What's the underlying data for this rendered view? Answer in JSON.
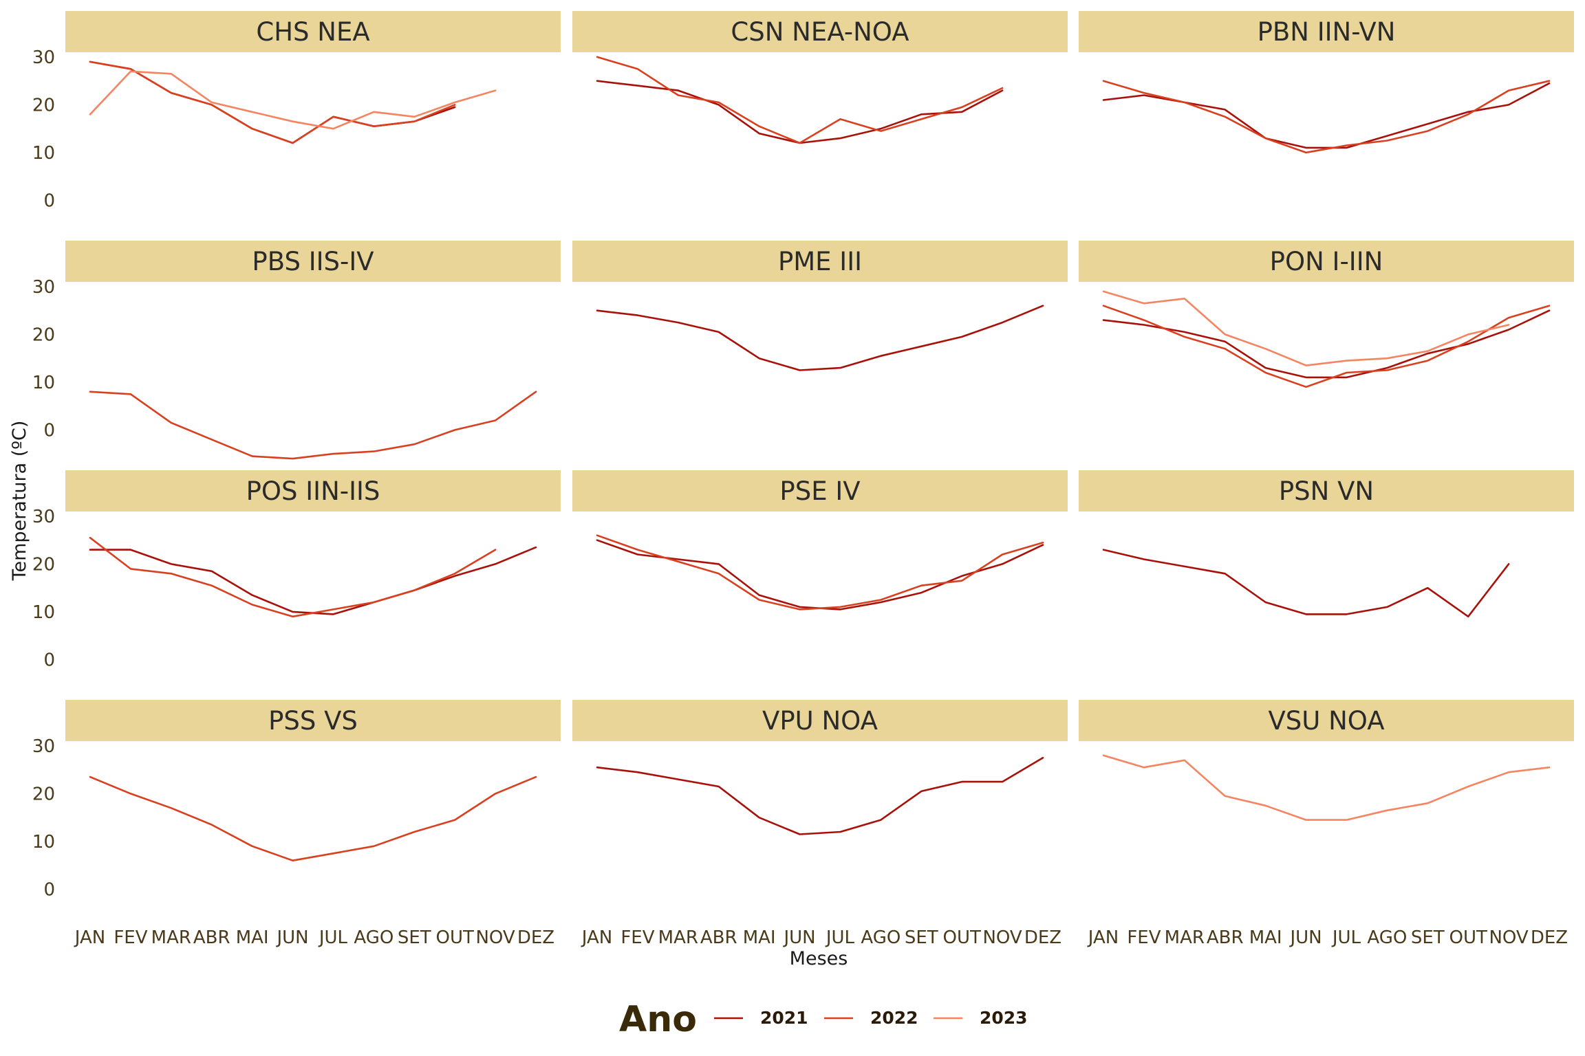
{
  "chart_data": {
    "type": "line",
    "xlabel": "Meses",
    "ylabel": "Temperatura (ºC)",
    "ylim": [
      -7,
      31
    ],
    "yticks": [
      0,
      10,
      20,
      30
    ],
    "months": [
      "JAN",
      "FEV",
      "MAR",
      "ABR",
      "MAI",
      "JUN",
      "JUL",
      "AGO",
      "SET",
      "OUT",
      "NOV",
      "DEZ"
    ],
    "legend": {
      "title": "Ano",
      "entries": [
        {
          "label": "2021",
          "color": "#a8110a"
        },
        {
          "label": "2022",
          "color": "#d8401f"
        },
        {
          "label": "2023",
          "color": "#f58460"
        }
      ]
    },
    "strip_color": "#e8d597",
    "panels": [
      {
        "title": "CHS NEA",
        "series": [
          {
            "year": "2021",
            "values": [
              29,
              27.5,
              22.5,
              20,
              15,
              12,
              17.5,
              15.5,
              16.5,
              19.5,
              null,
              null
            ]
          },
          {
            "year": "2022",
            "values": [
              29,
              27.5,
              22.5,
              20,
              15,
              12,
              17.5,
              15.5,
              16.5,
              20,
              null,
              null
            ]
          },
          {
            "year": "2023",
            "values": [
              18,
              27,
              26.5,
              20.5,
              18.5,
              16.5,
              15,
              18.5,
              17.5,
              20.5,
              23,
              null
            ]
          }
        ]
      },
      {
        "title": "CSN NEA-NOA",
        "series": [
          {
            "year": "2021",
            "values": [
              25,
              24,
              23,
              20,
              14,
              12,
              13,
              15,
              18,
              18.5,
              23,
              null
            ]
          },
          {
            "year": "2022",
            "values": [
              30,
              27.5,
              22,
              20.5,
              15.5,
              12,
              17,
              14.5,
              17,
              19.5,
              23.5,
              null
            ]
          }
        ]
      },
      {
        "title": "PBN IIN-VN",
        "series": [
          {
            "year": "2021",
            "values": [
              21,
              22,
              20.5,
              19,
              13,
              11,
              11,
              13.5,
              16,
              18.5,
              20,
              24.5
            ]
          },
          {
            "year": "2022",
            "values": [
              25,
              22.5,
              20.5,
              17.5,
              13,
              10,
              11.5,
              12.5,
              14.5,
              18,
              23,
              25
            ]
          }
        ]
      },
      {
        "title": "PBS IIS-IV",
        "series": [
          {
            "year": "2022",
            "values": [
              8,
              7.5,
              1.5,
              -2,
              -5.5,
              -6,
              -5,
              -4.5,
              -3,
              0,
              2,
              8
            ]
          }
        ]
      },
      {
        "title": "PME III",
        "series": [
          {
            "year": "2021",
            "values": [
              25,
              24,
              22.5,
              20.5,
              15,
              12.5,
              13,
              15.5,
              17.5,
              19.5,
              22.5,
              26
            ]
          }
        ]
      },
      {
        "title": "PON I-IIN",
        "series": [
          {
            "year": "2021",
            "values": [
              23,
              22,
              20.5,
              18.5,
              13,
              11,
              11,
              13,
              16,
              18,
              21,
              25
            ]
          },
          {
            "year": "2022",
            "values": [
              26,
              23,
              19.5,
              17,
              12,
              9,
              12,
              12.5,
              14.5,
              18.5,
              23.5,
              26
            ]
          },
          {
            "year": "2023",
            "values": [
              29,
              26.5,
              27.5,
              20,
              17,
              13.5,
              14.5,
              15,
              16.5,
              20,
              22,
              null
            ]
          }
        ]
      },
      {
        "title": "POS IIN-IIS",
        "series": [
          {
            "year": "2021",
            "values": [
              23,
              23,
              20,
              18.5,
              13.5,
              10,
              9.5,
              12,
              14.5,
              17.5,
              20,
              23.5
            ]
          },
          {
            "year": "2022",
            "values": [
              25.5,
              19,
              18,
              15.5,
              11.5,
              9,
              10.5,
              12,
              14.5,
              18,
              23,
              null
            ]
          }
        ]
      },
      {
        "title": "PSE IV",
        "series": [
          {
            "year": "2021",
            "values": [
              25,
              22,
              21,
              20,
              13.5,
              11,
              10.5,
              12,
              14,
              17.5,
              20,
              24
            ]
          },
          {
            "year": "2022",
            "values": [
              26,
              23,
              20.5,
              18,
              12.5,
              10.5,
              11,
              12.5,
              15.5,
              16.5,
              22,
              24.5
            ]
          }
        ]
      },
      {
        "title": "PSN VN",
        "series": [
          {
            "year": "2021",
            "values": [
              23,
              21,
              19.5,
              18,
              12,
              9.5,
              9.5,
              11,
              15,
              9,
              20,
              null
            ]
          }
        ]
      },
      {
        "title": "PSS VS",
        "series": [
          {
            "year": "2022",
            "values": [
              23.5,
              20,
              17,
              13.5,
              9,
              6,
              7.5,
              9,
              12,
              14.5,
              20,
              23.5
            ]
          }
        ]
      },
      {
        "title": "VPU NOA",
        "series": [
          {
            "year": "2021",
            "values": [
              25.5,
              24.5,
              23,
              21.5,
              15,
              11.5,
              12,
              14.5,
              20.5,
              22.5,
              22.5,
              27.5
            ]
          }
        ]
      },
      {
        "title": "VSU NOA",
        "series": [
          {
            "year": "2023",
            "values": [
              28,
              25.5,
              27,
              19.5,
              17.5,
              14.5,
              14.5,
              16.5,
              18,
              21.5,
              24.5,
              25.5
            ]
          }
        ]
      }
    ]
  }
}
